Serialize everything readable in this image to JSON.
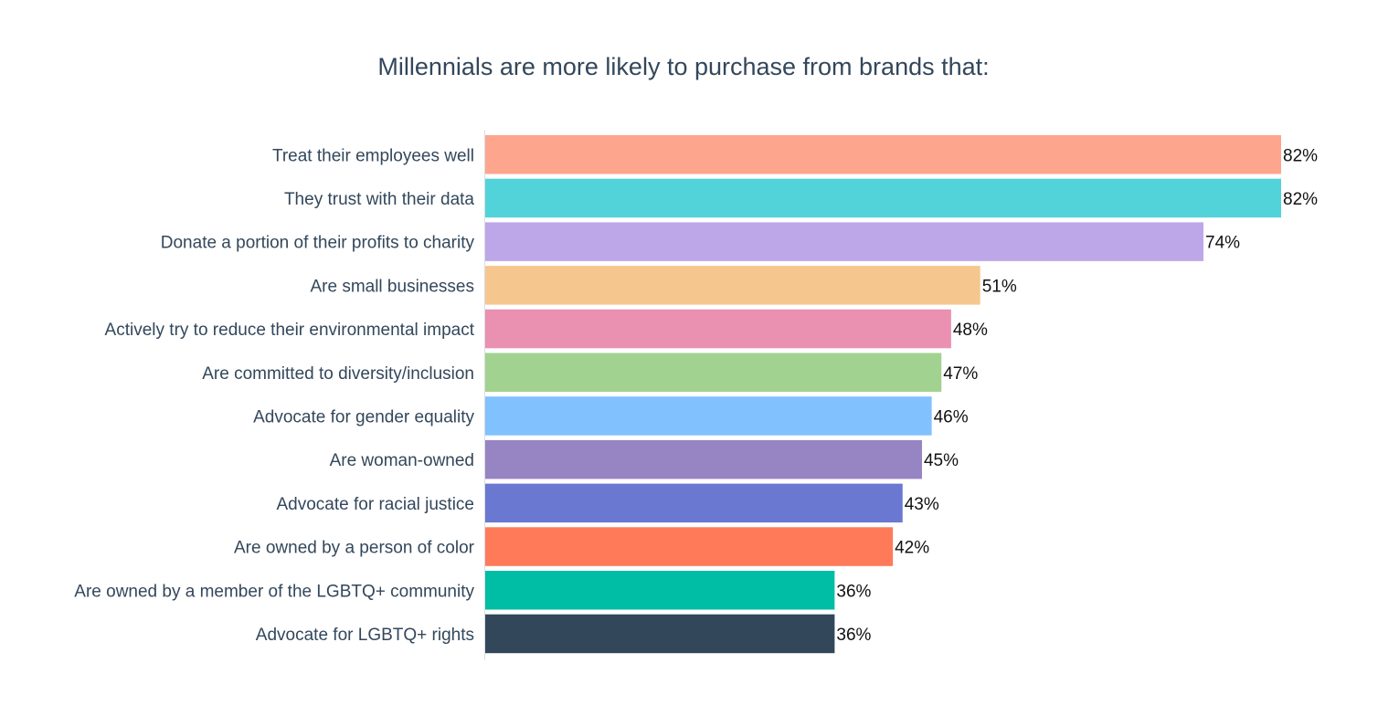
{
  "chart_data": {
    "type": "bar",
    "orientation": "horizontal",
    "title": "Millennials are more likely to purchase from brands that:",
    "xlabel": "",
    "ylabel": "",
    "xlim": [
      0,
      82
    ],
    "grid": false,
    "categories": [
      "Treat their employees well",
      "They trust with their data",
      "Donate a portion of their profits to charity",
      "Are small businesses",
      "Actively try to reduce their environmental impact",
      "Are committed to diversity/inclusion",
      "Advocate for gender equality",
      "Are woman-owned",
      "Advocate for racial justice",
      "Are owned by a person of color",
      "Are owned by a member of the LGBTQ+ community",
      "Advocate for LGBTQ+ rights"
    ],
    "values": [
      82,
      82,
      74,
      51,
      48,
      47,
      46,
      45,
      43,
      42,
      36,
      36
    ],
    "data_labels": [
      "82%",
      "82%",
      "74%",
      "51%",
      "48%",
      "47%",
      "46%",
      "45%",
      "43%",
      "42%",
      "36%",
      "36%"
    ],
    "colors": [
      "#fea58e",
      "#51d3d9",
      "#bea7e8",
      "#f5c78e",
      "#ea90b1",
      "#a2d28f",
      "#81c1fd",
      "#9784c2",
      "#6a78d1",
      "#ff7a59",
      "#00bda5",
      "#33475b"
    ]
  }
}
